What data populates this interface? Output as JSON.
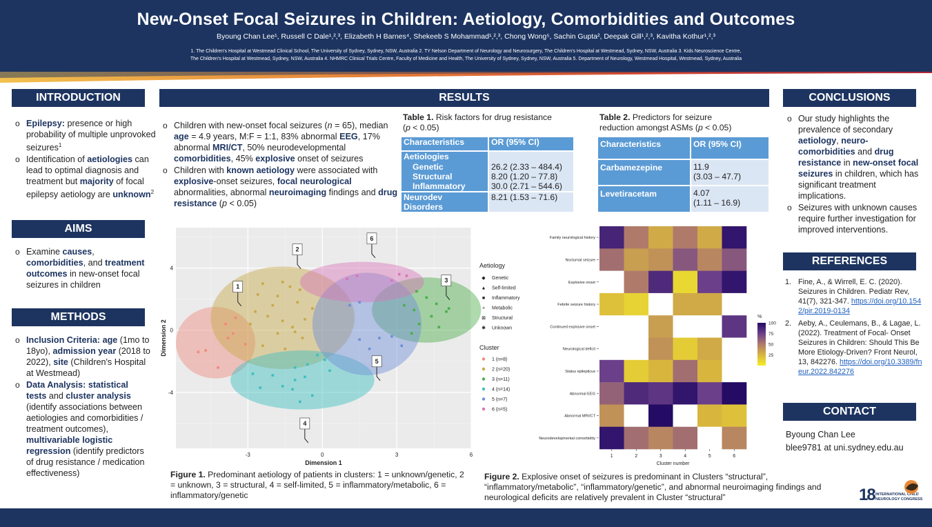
{
  "header": {
    "title": "New-Onset Focal Seizures in Children: Aetiology, Comorbidities and Outcomes",
    "authors": "Byoung Chan Lee¹, Russell C Dale¹,²,³, Elizabeth H Barnes⁴, Shekeeb S Mohammad¹,²,³, Chong Wong⁵, Sachin Gupta², Deepak Gill¹,²,³, Kavitha Kothur¹,²,³",
    "affiliations_line1": "1. The Children's Hospital at Westmead Clinical School, The University of Sydney, Sydney, NSW, Australia 2. TY Nelson Department of Neurology and Neurosurgery, The Children's Hospital at Westmead, Sydney, NSW, Australia 3. Kids Neuroscience Centre,",
    "affiliations_line2": "The Children's Hospital at Westmead, Sydney, NSW, Australia 4. NHMRC Clinical Trials Centre, Faculty of Medicine and Health, The University of Sydney, Sydney, NSW, Australia 5. Department of Neurology, Westmead Hospital, Westmead, Sydney, Australia"
  },
  "colors": {
    "navy": "#1d3460",
    "table_header": "#5b9bd5",
    "table_cell": "#dbe6f4"
  },
  "introduction": {
    "heading": "INTRODUCTION",
    "b1_bold": "Epilepsy:",
    "b1_text": " presence or high probability of multiple unprovoked seizures",
    "b1_sup": "1",
    "b2_pre": "Identification of ",
    "b2_bold1": "aetiologies",
    "b2_mid": " can lead to optimal diagnosis and treatment but ",
    "b2_bold2": "majority",
    "b2_mid2": " of focal epilepsy aetiology are ",
    "b2_bold3": "unknown",
    "b2_sup": "2"
  },
  "aims": {
    "heading": "AIMS",
    "pre": "Examine ",
    "bold1": "causes",
    "mid1": ", ",
    "bold2": "comorbidities",
    "mid2": ", and ",
    "bold3": "treatment outcomes",
    "post": " in new-onset focal seizures in children"
  },
  "methods": {
    "heading": "METHODS",
    "m1_bold1": "Inclusion Criteria: age",
    "m1_t1": " (1mo to 18yo), ",
    "m1_bold2": "admission year",
    "m1_t2": " (2018 to 2022), ",
    "m1_bold3": "site",
    "m1_t3": " (Children's Hospital at Westmead)",
    "m2_bold1": "Data Analysis: statistical tests",
    "m2_t1": " and ",
    "m2_bold2": "cluster analysis",
    "m2_t2": " (identify associations between aetiologies and comorbidities / treatment outcomes), ",
    "m2_bold3": "multivariable logistic regression",
    "m2_t3": " (identify predictors of drug resistance / medication effectiveness)"
  },
  "results": {
    "heading": "RESULTS",
    "r1_t1": "Children with new-onset focal seizures (",
    "r1_n": "n",
    "r1_t2": " = 65), median ",
    "r1_bold1": "age",
    "r1_t3": " = 4.9 years, M:F = 1:1, 83% abnormal ",
    "r1_bold2": "EEG",
    "r1_t4": ", 17% abnormal ",
    "r1_bold3": "MRI/CT",
    "r1_t5": ", 50% neurodevelopmental ",
    "r1_bold4": "comorbidities",
    "r1_t6": ", 45% ",
    "r1_bold5": "explosive",
    "r1_t7": " onset of seizures",
    "r2_t1": "Children with ",
    "r2_bold1": "known aetiology",
    "r2_t2": " were associated with ",
    "r2_bold2": "explosive",
    "r2_t3": "-onset seizures, ",
    "r2_bold3": "focal neurological",
    "r2_t4": " abnormalities, abnormal ",
    "r2_bold4": "neuroimaging",
    "r2_t5": " findings and ",
    "r2_bold5": "drug resistance",
    "r2_t6": " (",
    "r2_p": "p",
    "r2_t7": " < 0.05)"
  },
  "table1": {
    "caption_bold": "Table 1.",
    "caption": " Risk factors for drug resistance",
    "caption2_pre": "(",
    "caption2_p": "p",
    "caption2_post": " < 0.05)",
    "col1": "Characteristics",
    "col2": "OR (95% CI)",
    "group": "Aetiologies",
    "rows": [
      {
        "label": "Genetic",
        "or": "26.2 (2.33 – 484.4)"
      },
      {
        "label": "Structural",
        "or": "8.20 (1.20 – 77.8)"
      },
      {
        "label": "Inflammatory",
        "or": "30.0 (2.71 – 544.6)"
      }
    ],
    "last_label1": "Neurodev",
    "last_label2": "Disorders",
    "last_or": "8.21 (1.53 – 71.6)"
  },
  "table2": {
    "caption_bold": "Table 2.",
    "caption": " Predictors for seizure",
    "caption2_pre": "reduction amongst ASMs (",
    "caption2_p": "p",
    "caption2_post": " < 0.05)",
    "col1": "Characteristics",
    "col2": "OR (95% CI)",
    "rows": [
      {
        "label": "Carbamezepine",
        "or1": "11.9",
        "or2": "(3.03 – 47.7)"
      },
      {
        "label": "Levetiracetam",
        "or1": "4.07",
        "or2": "(1.11 – 16.9)"
      }
    ]
  },
  "figure1": {
    "caption_bold": "Figure 1.",
    "caption": " Predominant aetiology of patients in clusters: 1 = unknown/genetic, 2 = unknown, 3 = structural, 4 = self-limited, 5 = inflammatory/metabolic, 6 = inflammatory/genetic",
    "chart_data": {
      "type": "scatter",
      "xlabel": "Dimension 1",
      "ylabel": "Dimension 2",
      "xticks": [
        "-3",
        "0",
        "3",
        "6"
      ],
      "yticks": [
        "4",
        "0",
        "-4"
      ],
      "xlim": [
        -5.9,
        6.0
      ],
      "ylim": [
        -7.6,
        6.6
      ],
      "legend_aetiology_title": "Aetiology",
      "aetiologies": [
        "Genetic",
        "Self-limited",
        "Inflammatory",
        "Metabolic",
        "Structural",
        "Unknown"
      ],
      "legend_cluster_title": "Cluster",
      "clusters": [
        {
          "id": "1",
          "label": "1 (n=8)",
          "color": "#f08a7e",
          "cx": -4.3,
          "cy": -0.8,
          "rx": 1.6,
          "ry": 2.3,
          "label_x": -3.6,
          "label_y": 2.8,
          "points": [
            [
              -3.5,
              0.8
            ],
            [
              -3.9,
              0.4
            ],
            [
              -3.6,
              -0.2
            ],
            [
              -3.8,
              -0.5
            ],
            [
              -4.7,
              -1.3
            ],
            [
              -5.0,
              -1.4
            ],
            [
              -3.1,
              -0.9
            ],
            [
              -4.2,
              -2.4
            ]
          ]
        },
        {
          "id": "2",
          "label": "2 (n=20)",
          "color": "#c8a84a",
          "cx": -1.6,
          "cy": 0.8,
          "rx": 2.9,
          "ry": 3.3,
          "label_x": -1.2,
          "label_y": 5.2,
          "points": [
            [
              -2.4,
              3.0
            ],
            [
              -1.6,
              3.1
            ],
            [
              -1.3,
              2.8
            ],
            [
              -1.8,
              2.2
            ],
            [
              -2.0,
              1.6
            ],
            [
              -1.0,
              1.8
            ],
            [
              -2.7,
              1.2
            ],
            [
              -2.2,
              0.9
            ],
            [
              -1.6,
              0.6
            ],
            [
              -0.7,
              0.7
            ],
            [
              -2.9,
              0.4
            ],
            [
              -1.2,
              0.2
            ],
            [
              -1.8,
              -0.2
            ],
            [
              -0.8,
              -0.5
            ],
            [
              -2.4,
              -1.0
            ],
            [
              -1.5,
              -1.2
            ],
            [
              -0.4,
              1.4
            ],
            [
              -0.9,
              2.6
            ],
            [
              -2.6,
              2.3
            ],
            [
              -1.1,
              -0.1
            ]
          ]
        },
        {
          "id": "3",
          "label": "3 (n=11)",
          "color": "#4cae4c",
          "cx": 4.2,
          "cy": 1.3,
          "rx": 2.2,
          "ry": 2.1,
          "label_x": 4.8,
          "label_y": 3.2,
          "points": [
            [
              3.8,
              2.5
            ],
            [
              4.2,
              2.1
            ],
            [
              3.3,
              1.6
            ],
            [
              4.6,
              1.7
            ],
            [
              3.7,
              1.3
            ],
            [
              4.4,
              0.9
            ],
            [
              5.0,
              1.2
            ],
            [
              3.9,
              0.4
            ],
            [
              4.7,
              0.2
            ],
            [
              3.6,
              -0.2
            ],
            [
              5.1,
              1.4
            ]
          ]
        },
        {
          "id": "4",
          "label": "4 (n=14)",
          "color": "#3cbfc0",
          "cx": -0.8,
          "cy": -3.2,
          "rx": 2.9,
          "ry": 1.9,
          "label_x": -0.9,
          "label_y": -6.0,
          "points": [
            [
              -0.2,
              -1.6
            ],
            [
              0.1,
              -1.9
            ],
            [
              -0.6,
              -2.2
            ],
            [
              -1.1,
              -2.4
            ],
            [
              -2.8,
              -2.8
            ],
            [
              -2.0,
              -2.9
            ],
            [
              -1.1,
              -3.2
            ],
            [
              -0.7,
              -3.0
            ],
            [
              -1.6,
              -3.6
            ],
            [
              -1.2,
              -3.8
            ],
            [
              -0.4,
              -4.2
            ],
            [
              -2.5,
              -3.7
            ],
            [
              0.3,
              -2.6
            ],
            [
              -0.9,
              -4.6
            ]
          ]
        },
        {
          "id": "5",
          "label": "5 (n=7)",
          "color": "#6f8ed8",
          "cx": 1.8,
          "cy": 0.4,
          "rx": 2.2,
          "ry": 3.3,
          "label_x": 2.0,
          "label_y": -2.0,
          "points": [
            [
              1.1,
              1.6
            ],
            [
              1.5,
              1.8
            ],
            [
              1.5,
              -0.6
            ],
            [
              2.3,
              -0.5
            ],
            [
              2.8,
              -0.4
            ],
            [
              3.2,
              -1.0
            ],
            [
              1.9,
              -1.2
            ]
          ]
        },
        {
          "id": "6",
          "label": "6 (n=5)",
          "color": "#d775b8",
          "cx": 1.6,
          "cy": 3.1,
          "rx": 2.5,
          "ry": 1.3,
          "label_x": 1.8,
          "label_y": 5.9,
          "points": [
            [
              1.0,
              3.3
            ],
            [
              1.4,
              3.5
            ],
            [
              3.1,
              3.6
            ],
            [
              3.4,
              3.5
            ],
            [
              2.8,
              3.2
            ]
          ]
        }
      ]
    }
  },
  "figure2": {
    "caption_bold": "Figure 2.",
    "caption": " Explosive onset of seizures is predominant in Clusters “structural”, “inflammatory/metabolic”, “inflammatory/genetic”, and abnormal neuroimaging findings and neurological deficits are relatively prevalent in Cluster “structural”",
    "chart_data": {
      "type": "heatmap",
      "xlabel": "Cluster number",
      "ylabel": "",
      "x": [
        "1",
        "2",
        "3",
        "4",
        "5",
        "6"
      ],
      "y": [
        "Family neurological history",
        "Nocturnal seizure",
        "Explosive onset",
        "Febrile seizure history",
        "Continued explosive onset",
        "Neurological deficit",
        "Status epilepticus",
        "Abnormal EEG",
        "Abnormal MRI/CT",
        "Neurodevelopmental comorbidity"
      ],
      "values": [
        [
          88,
          50,
          30,
          50,
          30,
          95
        ],
        [
          55,
          35,
          40,
          65,
          45,
          65
        ],
        [
          0,
          50,
          85,
          10,
          75,
          95
        ],
        [
          20,
          12,
          0,
          30,
          30,
          0
        ],
        [
          0,
          0,
          35,
          0,
          0,
          80
        ],
        [
          0,
          0,
          40,
          15,
          30,
          0
        ],
        [
          75,
          15,
          25,
          55,
          25,
          0
        ],
        [
          60,
          85,
          80,
          95,
          75,
          100
        ],
        [
          40,
          0,
          100,
          0,
          25,
          20
        ],
        [
          95,
          55,
          45,
          55,
          0,
          45
        ]
      ],
      "legend_title": "%",
      "legend_ticks": [
        "100",
        "75",
        "50",
        "25"
      ],
      "color_scale": [
        "#240b64",
        "#6b3f8a",
        "#b07a6a",
        "#d8b63e",
        "#f5ee2a"
      ]
    }
  },
  "conclusions": {
    "heading": "CONCLUSIONS",
    "c1_t1": "Our study highlights the prevalence of secondary ",
    "c1_b1": "aetiology",
    "c1_t2": ", ",
    "c1_b2": "neuro-comorbidities",
    "c1_t3": " and ",
    "c1_b3": "drug resistance",
    "c1_t4": " in ",
    "c1_b4": "new-onset focal seizures",
    "c1_t5": " in children, which has significant treatment implications.",
    "c2": "Seizures with unknown causes require further investigation for improved interventions."
  },
  "references": {
    "heading": "REFERENCES",
    "items": [
      {
        "num": "1.",
        "text": "Fine, A., & Wirrell, E. C. (2020). Seizures in Children. Pediatr Rev, 41(7), 321-347.",
        "link": "https://doi.org/10.1542/pir.2019-0134"
      },
      {
        "num": "2.",
        "text": "Aeby, A., Ceulemans, B., & Lagae, L. (2022). Treatment of Focal- Onset Seizures in Children: Should This Be More Etiology-Driven? Front Neurol, 13, 842276.",
        "link": "https://doi.org/10.3389/fneur.2022.842276"
      }
    ]
  },
  "contact": {
    "heading": "CONTACT",
    "name": "Byoung Chan Lee",
    "email": "blee9781 at uni.sydney.edu.au"
  },
  "logo": {
    "number": "18",
    "line1": "INTERNATIONAL CHILD",
    "line2": "NEUROLOGY CONGRESS"
  }
}
